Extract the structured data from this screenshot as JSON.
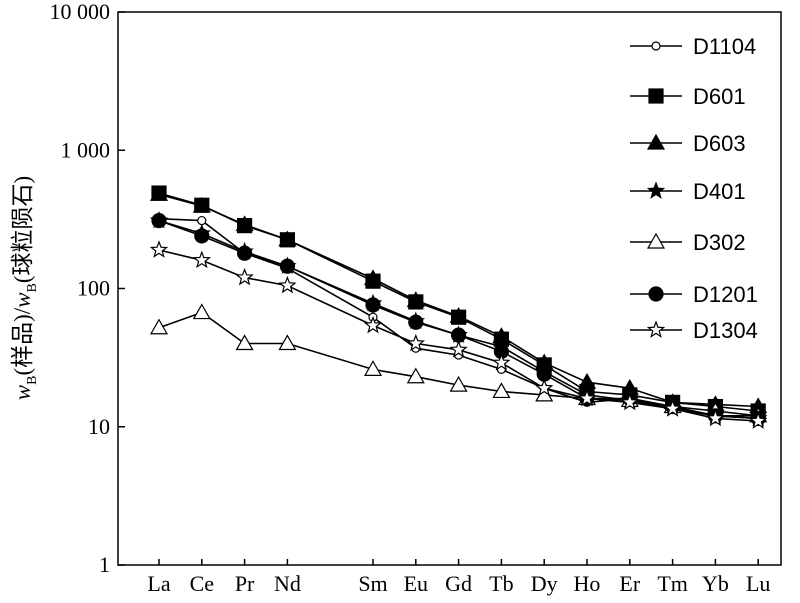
{
  "chart_data": {
    "type": "line",
    "title": "",
    "xlabel": "",
    "ylabel": {
      "w1": "w",
      "sub1": "B",
      "mid1": "(样品)/",
      "w2": "w",
      "sub2": "B",
      "mid2": "(球粒陨石)"
    },
    "yscale": "log",
    "ylim": [
      1,
      10000
    ],
    "yticks": [
      1,
      10,
      100,
      1000,
      10000
    ],
    "ytick_labels": [
      "1",
      "10",
      "100",
      "1 000",
      "10 000"
    ],
    "categories": [
      "La",
      "Ce",
      "Pr",
      "Nd",
      "Sm",
      "Eu",
      "Gd",
      "Tb",
      "Dy",
      "Ho",
      "Er",
      "Tm",
      "Yb",
      "Lu"
    ],
    "category_positions": [
      57,
      58,
      59,
      60,
      62,
      63,
      64,
      65,
      66,
      67,
      68,
      69,
      70,
      71
    ],
    "legend_position": "top-right",
    "series": [
      {
        "name": "D1104",
        "marker": "open-circle-small",
        "values": [
          320,
          310,
          180,
          140,
          62,
          37,
          33,
          26,
          19,
          15,
          16,
          14,
          12,
          12
        ]
      },
      {
        "name": "D601",
        "marker": "filled-square",
        "values": [
          490,
          400,
          285,
          225,
          113,
          80,
          62,
          43,
          28,
          18,
          17,
          15,
          14,
          13
        ]
      },
      {
        "name": "D603",
        "marker": "filled-triangle",
        "values": [
          480,
          395,
          290,
          225,
          118,
          82,
          63,
          45,
          29,
          21,
          19,
          15,
          14.5,
          14
        ]
      },
      {
        "name": "D401",
        "marker": "filled-star",
        "values": [
          310,
          250,
          185,
          145,
          78,
          58,
          46,
          38,
          25,
          17,
          15.5,
          13.5,
          12,
          11.5
        ]
      },
      {
        "name": "D302",
        "marker": "open-triangle",
        "values": [
          52,
          67,
          40,
          40,
          26,
          23,
          20,
          18,
          17,
          16,
          15.5,
          14,
          13,
          12
        ]
      },
      {
        "name": "D1201",
        "marker": "filled-circle",
        "values": [
          310,
          240,
          180,
          145,
          76,
          57,
          46,
          35,
          24,
          16,
          16,
          14,
          12,
          11.5
        ]
      },
      {
        "name": "D1304",
        "marker": "open-star",
        "values": [
          190,
          160,
          120,
          105,
          54,
          40,
          36,
          29,
          19,
          16,
          15,
          13.5,
          11.5,
          11
        ]
      }
    ]
  }
}
